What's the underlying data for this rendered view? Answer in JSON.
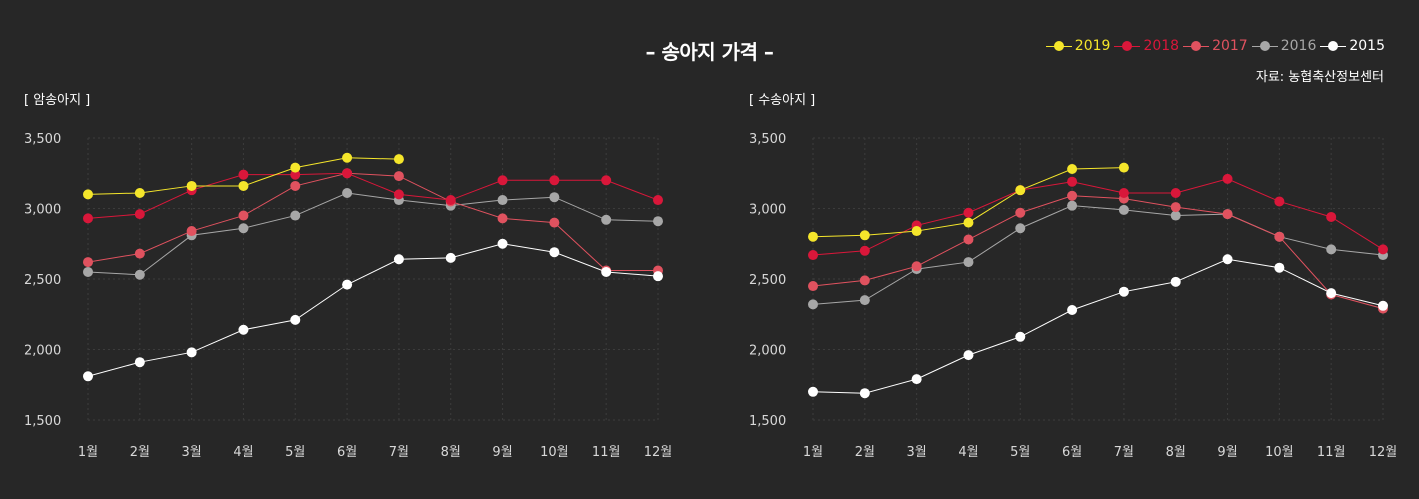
{
  "header": {
    "title": "– 송아지 가격 –",
    "source": "자료: 농협축산정보센터"
  },
  "legend": [
    {
      "name": "2019",
      "color": "#f5e62b"
    },
    {
      "name": "2018",
      "color": "#d9173a"
    },
    {
      "name": "2017",
      "color": "#e0525f"
    },
    {
      "name": "2016",
      "color": "#a7a7a7"
    },
    {
      "name": "2015",
      "color": "#ffffff"
    }
  ],
  "chart_data": [
    {
      "type": "line",
      "title": "[ 암송아지 ]",
      "categories": [
        "1월",
        "2월",
        "3월",
        "4월",
        "5월",
        "6월",
        "7월",
        "8월",
        "9월",
        "10월",
        "11월",
        "12월"
      ],
      "ylim": [
        1500,
        3500
      ],
      "yticks": [
        1500,
        2000,
        2500,
        3000,
        3500
      ],
      "ytick_labels": [
        "1,500",
        "2,000",
        "2,500",
        "3,000",
        "3,500"
      ],
      "grid": true,
      "series": [
        {
          "name": "2016",
          "color": "#a7a7a7",
          "values": [
            2550,
            2530,
            2810,
            2860,
            2950,
            3110,
            3060,
            3020,
            3060,
            3080,
            2920,
            2910
          ]
        },
        {
          "name": "2017",
          "color": "#e0525f",
          "values": [
            2620,
            2680,
            2840,
            2950,
            3160,
            3250,
            3230,
            3050,
            2930,
            2900,
            2560,
            2560
          ]
        },
        {
          "name": "2018",
          "color": "#d9173a",
          "values": [
            2930,
            2960,
            3130,
            3240,
            3240,
            3250,
            3100,
            3060,
            3200,
            3200,
            3200,
            3060
          ]
        },
        {
          "name": "2015",
          "color": "#ffffff",
          "values": [
            1810,
            1910,
            1980,
            2140,
            2210,
            2460,
            2640,
            2650,
            2750,
            2690,
            2550,
            2520
          ]
        },
        {
          "name": "2019",
          "color": "#f5e62b",
          "values": [
            3100,
            3110,
            3160,
            3160,
            3290,
            3360,
            3350,
            null,
            null,
            null,
            null,
            null
          ]
        }
      ]
    },
    {
      "type": "line",
      "title": "[ 수송아지 ]",
      "categories": [
        "1월",
        "2월",
        "3월",
        "4월",
        "5월",
        "6월",
        "7월",
        "8월",
        "9월",
        "10월",
        "11월",
        "12월"
      ],
      "ylim": [
        1500,
        3500
      ],
      "yticks": [
        1500,
        2000,
        2500,
        3000,
        3500
      ],
      "ytick_labels": [
        "1,500",
        "2,000",
        "2,500",
        "3,000",
        "3,500"
      ],
      "grid": true,
      "series": [
        {
          "name": "2016",
          "color": "#a7a7a7",
          "values": [
            2320,
            2350,
            2570,
            2620,
            2860,
            3020,
            2990,
            2950,
            2960,
            2800,
            2710,
            2670
          ]
        },
        {
          "name": "2017",
          "color": "#e0525f",
          "values": [
            2450,
            2490,
            2590,
            2780,
            2970,
            3090,
            3070,
            3010,
            2960,
            2800,
            2390,
            2290
          ]
        },
        {
          "name": "2018",
          "color": "#d9173a",
          "values": [
            2670,
            2700,
            2880,
            2970,
            3130,
            3190,
            3110,
            3110,
            3210,
            3050,
            2940,
            2710
          ]
        },
        {
          "name": "2015",
          "color": "#ffffff",
          "values": [
            1700,
            1690,
            1790,
            1960,
            2090,
            2280,
            2410,
            2480,
            2640,
            2580,
            2400,
            2310
          ]
        },
        {
          "name": "2019",
          "color": "#f5e62b",
          "values": [
            2800,
            2810,
            2840,
            2900,
            3130,
            3280,
            3290,
            null,
            null,
            null,
            null,
            null
          ]
        }
      ]
    }
  ]
}
